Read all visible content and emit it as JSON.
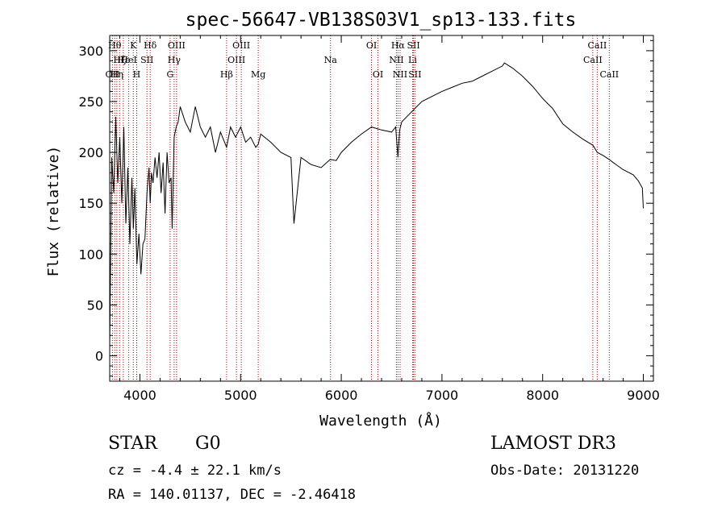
{
  "chart_data": {
    "type": "line",
    "title": "spec-56647-VB138S03V1_sp13-133.fits",
    "xlabel": "Wavelength (Å)",
    "ylabel": "Flux (relative)",
    "xlim": [
      3700,
      9100
    ],
    "ylim": [
      -25,
      315
    ],
    "xticks": [
      4000,
      5000,
      6000,
      7000,
      8000,
      9000
    ],
    "yticks": [
      0,
      50,
      100,
      150,
      200,
      250,
      300
    ],
    "grid": false,
    "series": [
      {
        "x": [
          3700,
          3720,
          3740,
          3760,
          3780,
          3800,
          3820,
          3840,
          3860,
          3880,
          3900,
          3920,
          3935,
          3950,
          3970,
          3990,
          4010,
          4030,
          4050,
          4070,
          4090,
          4102,
          4115,
          4130,
          4150,
          4170,
          4190,
          4210,
          4230,
          4250,
          4270,
          4290,
          4310,
          4320,
          4340,
          4360,
          4380,
          4400,
          4450,
          4500,
          4550,
          4600,
          4650,
          4700,
          4750,
          4800,
          4861,
          4900,
          4950,
          5000,
          5050,
          5100,
          5150,
          5175,
          5200,
          5300,
          5400,
          5500,
          5530,
          5600,
          5700,
          5800,
          5890,
          5950,
          6000,
          6100,
          6200,
          6300,
          6400,
          6500,
          6540,
          6563,
          6580,
          6600,
          6700,
          6800,
          6900,
          7000,
          7100,
          7200,
          7300,
          7400,
          7500,
          7600,
          7620,
          7700,
          7800,
          7900,
          8000,
          8100,
          8200,
          8300,
          8400,
          8500,
          8542,
          8600,
          8662,
          8700,
          8800,
          8900,
          8950,
          8990,
          9000
        ],
        "y": [
          10,
          195,
          160,
          235,
          170,
          215,
          150,
          225,
          130,
          185,
          110,
          175,
          125,
          165,
          90,
          120,
          80,
          110,
          115,
          160,
          185,
          150,
          180,
          170,
          195,
          175,
          200,
          160,
          190,
          140,
          200,
          170,
          175,
          125,
          215,
          225,
          230,
          245,
          230,
          220,
          245,
          225,
          215,
          225,
          200,
          220,
          205,
          225,
          215,
          225,
          210,
          215,
          205,
          208,
          218,
          210,
          200,
          195,
          130,
          195,
          188,
          185,
          193,
          192,
          200,
          210,
          218,
          225,
          222,
          220,
          225,
          195,
          222,
          230,
          240,
          250,
          255,
          260,
          264,
          268,
          270,
          275,
          280,
          285,
          288,
          283,
          275,
          265,
          253,
          243,
          228,
          220,
          213,
          207,
          200,
          197,
          193,
          190,
          183,
          178,
          172,
          165,
          145
        ]
      }
    ],
    "line_markers": [
      {
        "x": 3727,
        "label": "OII",
        "row": 2
      },
      {
        "x": 3750,
        "label": "Hθ",
        "row": 0
      },
      {
        "x": 3771,
        "label": "Hη",
        "row": 2
      },
      {
        "x": 3798,
        "label": "Hζ",
        "row": 1
      },
      {
        "x": 3835,
        "label": "Hε",
        "row": 1
      },
      {
        "x": 3889,
        "label": "HeI",
        "row": 1
      },
      {
        "x": 3934,
        "label": "K",
        "row": 0
      },
      {
        "x": 3968,
        "label": "H",
        "row": 2
      },
      {
        "x": 4070,
        "label": "SII",
        "row": 1
      },
      {
        "x": 4102,
        "label": "Hδ",
        "row": 0
      },
      {
        "x": 4300,
        "label": "G",
        "row": 2
      },
      {
        "x": 4340,
        "label": "Hγ",
        "row": 1
      },
      {
        "x": 4364,
        "label": "OIII",
        "row": 0
      },
      {
        "x": 4861,
        "label": "Hβ",
        "row": 2
      },
      {
        "x": 4959,
        "label": "OIII",
        "row": 1
      },
      {
        "x": 5007,
        "label": "OIII",
        "row": 0
      },
      {
        "x": 5175,
        "label": "Mg",
        "row": 2
      },
      {
        "x": 5893,
        "label": "Na",
        "row": 1
      },
      {
        "x": 6300,
        "label": "OI",
        "row": 0
      },
      {
        "x": 6364,
        "label": "OI",
        "row": 2
      },
      {
        "x": 6548,
        "label": "NII",
        "row": 1
      },
      {
        "x": 6563,
        "label": "Hα",
        "row": 0
      },
      {
        "x": 6584,
        "label": "NII",
        "row": 2
      },
      {
        "x": 6708,
        "label": "Li",
        "row": 1
      },
      {
        "x": 6717,
        "label": "SII",
        "row": 0
      },
      {
        "x": 6731,
        "label": "SII",
        "row": 2
      },
      {
        "x": 8498,
        "label": "CaII",
        "row": 1
      },
      {
        "x": 8542,
        "label": "CaII",
        "row": 0
      },
      {
        "x": 8662,
        "label": "CaII",
        "row": 2
      }
    ]
  },
  "info": {
    "object_class": "STAR",
    "subclass": "G0",
    "redshift_line": "cz = -4.4 ± 22.1 km/s",
    "coords_line": "RA = 140.01137, DEC =  -2.46418",
    "survey": "LAMOST DR3",
    "obs_date": "Obs-Date: 20131220"
  }
}
